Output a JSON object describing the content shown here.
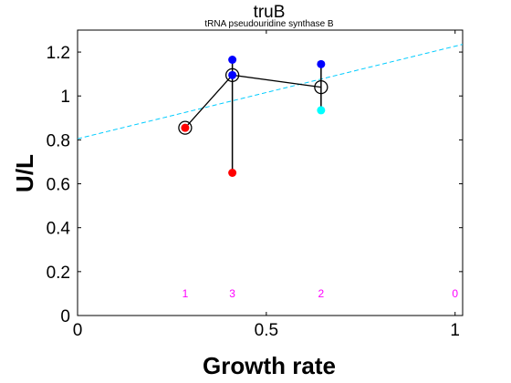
{
  "chart_data": {
    "type": "scatter",
    "title": "truB",
    "subtitle": "tRNA pseudouridine synthase B",
    "xlabel": "Growth rate",
    "ylabel": "U/L",
    "xlim": [
      0,
      1.02
    ],
    "ylim": [
      0,
      1.3
    ],
    "xticks": [
      {
        "value": 0,
        "label": "0"
      },
      {
        "value": 0.5,
        "label": "0.5"
      },
      {
        "value": 1,
        "label": "1"
      }
    ],
    "yticks": [
      {
        "value": 0,
        "label": "0"
      },
      {
        "value": 0.2,
        "label": "0.2"
      },
      {
        "value": 0.4,
        "label": "0.4"
      },
      {
        "value": 0.6,
        "label": "0.6"
      },
      {
        "value": 0.8,
        "label": "0.8"
      },
      {
        "value": 1,
        "label": "1"
      },
      {
        "value": 1.2,
        "label": "1.2"
      }
    ],
    "grid": false,
    "legend": "none",
    "mean_series": {
      "color": "#000000",
      "points": [
        {
          "x": 0.285,
          "y": 0.855
        },
        {
          "x": 0.41,
          "y": 1.095
        },
        {
          "x": 0.645,
          "y": 1.04
        }
      ]
    },
    "replicate_series": [
      {
        "color": "#ff0000",
        "points": [
          {
            "x": 0.285,
            "y": 0.855
          },
          {
            "x": 0.41,
            "y": 0.65
          }
        ]
      },
      {
        "color": "#0000ff",
        "points": [
          {
            "x": 0.41,
            "y": 1.165
          },
          {
            "x": 0.41,
            "y": 1.095
          },
          {
            "x": 0.645,
            "y": 1.145
          }
        ]
      },
      {
        "color": "#00ffff",
        "points": [
          {
            "x": 0.645,
            "y": 0.935
          }
        ]
      }
    ],
    "error_bars": [
      {
        "x": 0.41,
        "low": 0.65,
        "high": 1.165
      },
      {
        "x": 0.645,
        "low": 0.935,
        "high": 1.145
      }
    ],
    "fit_line": {
      "color": "#00ccff",
      "style": "dashed",
      "points": [
        {
          "x": 0,
          "y": 0.805
        },
        {
          "x": 1.02,
          "y": 1.235
        }
      ]
    },
    "annotations": {
      "color": "#ff00ff",
      "y": 0.1,
      "items": [
        {
          "x": 0.285,
          "text": "1"
        },
        {
          "x": 0.41,
          "text": "3"
        },
        {
          "x": 0.645,
          "text": "2"
        },
        {
          "x": 1.0,
          "text": "0"
        }
      ]
    }
  }
}
